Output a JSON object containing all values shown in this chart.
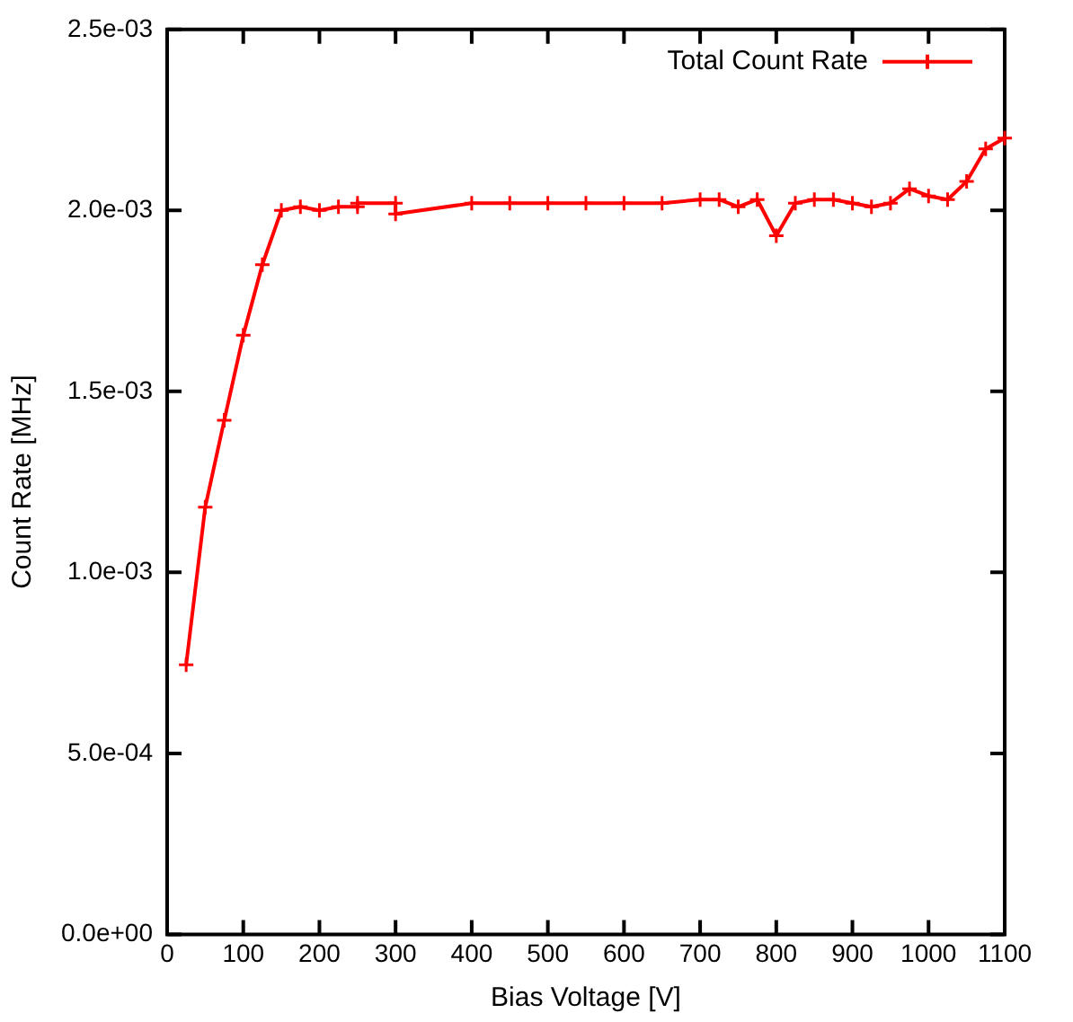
{
  "chart_data": {
    "type": "line",
    "xlabel": "Bias Voltage [V]",
    "ylabel": "Count Rate [MHz]",
    "legend": "top right",
    "marker": "cross",
    "line_style": "solid",
    "grid": false,
    "xlim": [
      0,
      1100
    ],
    "xticks": [
      0,
      100,
      200,
      300,
      400,
      500,
      600,
      700,
      800,
      900,
      1000,
      1100
    ],
    "ylim": [
      0,
      0.0025
    ],
    "yticks": [
      {
        "value": 0,
        "label": "0.0e+00"
      },
      {
        "value": 0.0005,
        "label": "5.0e-04"
      },
      {
        "value": 0.001,
        "label": "1.0e-03"
      },
      {
        "value": 0.0015,
        "label": "1.5e-03"
      },
      {
        "value": 0.002,
        "label": "2.0e-03"
      },
      {
        "value": 0.0025,
        "label": "2.5e-03"
      }
    ],
    "series": [
      {
        "name": "Total Count Rate",
        "color": "#ff0000",
        "x": [
          25,
          50,
          75,
          100,
          125,
          150,
          175,
          200,
          225,
          250,
          250,
          300,
          300,
          400,
          450,
          500,
          550,
          600,
          650,
          700,
          725,
          750,
          775,
          800,
          825,
          850,
          875,
          900,
          925,
          950,
          975,
          1000,
          1025,
          1050,
          1075,
          1100
        ],
        "values": [
          0.000745,
          0.00118,
          0.00142,
          0.001655,
          0.00185,
          0.002,
          0.00201,
          0.002,
          0.00201,
          0.00201,
          0.00202,
          0.00202,
          0.00199,
          0.00202,
          0.00202,
          0.00202,
          0.00202,
          0.00202,
          0.00202,
          0.00203,
          0.00203,
          0.00201,
          0.00203,
          0.00193,
          0.00202,
          0.00203,
          0.00203,
          0.00202,
          0.00201,
          0.00202,
          0.00206,
          0.00204,
          0.00203,
          0.00208,
          0.00217,
          0.0022
        ]
      }
    ]
  }
}
